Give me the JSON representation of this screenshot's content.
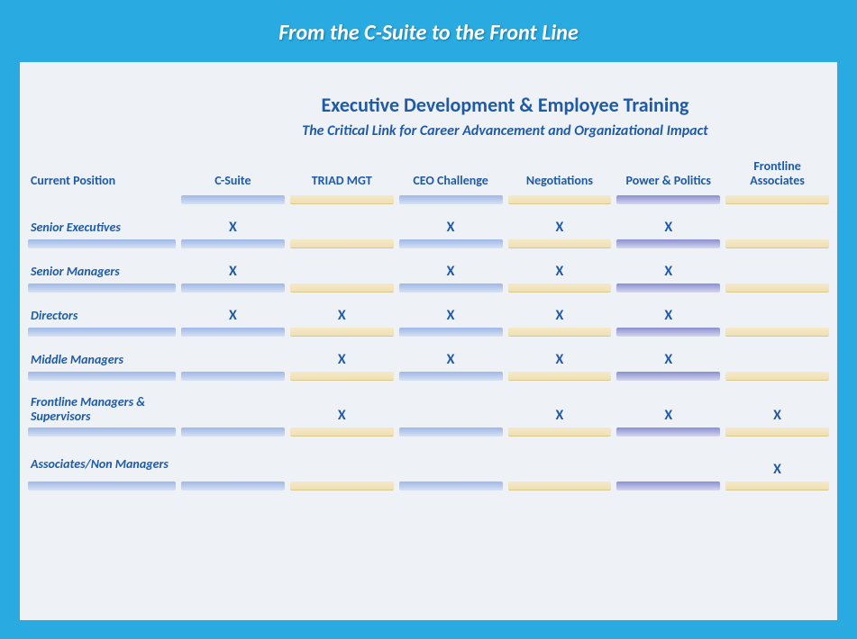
{
  "page": {
    "title": "From the C-Suite to the Front Line",
    "background_color": "#29abe2",
    "card_color": "#eef2f6",
    "text_color": "#1f5aa6"
  },
  "header": {
    "main": "Executive Development & Employee Training",
    "sub": "The Critical Link for Career Advancement and Organizational Impact"
  },
  "columns": {
    "row_header": "Current Position",
    "list": [
      {
        "label": "C-Suite",
        "chip": "blue"
      },
      {
        "label": "TRIAD  MGT",
        "chip": "cream"
      },
      {
        "label": "CEO Challenge",
        "chip": "blue"
      },
      {
        "label": "Negotiations",
        "chip": "cream"
      },
      {
        "label": "Power & Politics",
        "chip": "purple"
      },
      {
        "label": "Frontline Associates",
        "chip": "cream"
      }
    ]
  },
  "rows": [
    {
      "label": "Senior Executives",
      "marks": [
        "X",
        "",
        "X",
        "X",
        "X",
        ""
      ],
      "tall": false
    },
    {
      "label": "Senior Managers",
      "marks": [
        "X",
        "",
        "X",
        "X",
        "X",
        ""
      ],
      "tall": false
    },
    {
      "label": "Directors",
      "marks": [
        "X",
        "X",
        "X",
        "X",
        "X",
        ""
      ],
      "tall": false
    },
    {
      "label": "Middle Managers",
      "marks": [
        "",
        "X",
        "X",
        "X",
        "X",
        ""
      ],
      "tall": false
    },
    {
      "label": "Frontline Managers  & Supervisors",
      "marks": [
        "",
        "X",
        "",
        "X",
        "X",
        "X"
      ],
      "tall": true
    },
    {
      "label": "Associates/Non Managers",
      "marks": [
        "",
        "",
        "",
        "",
        "",
        "X"
      ],
      "tall": true
    }
  ],
  "chip_colors": {
    "blue": {
      "top": "#9eb8e6",
      "bottom": "#d7e1f4"
    },
    "purple": {
      "top": "#8a8fd0",
      "bottom": "#d5d7ef"
    },
    "cream": {
      "top": "#f5e9c8",
      "bottom": "#efe0b4",
      "border": "#d9c88c"
    }
  },
  "mark_glyph": "X"
}
